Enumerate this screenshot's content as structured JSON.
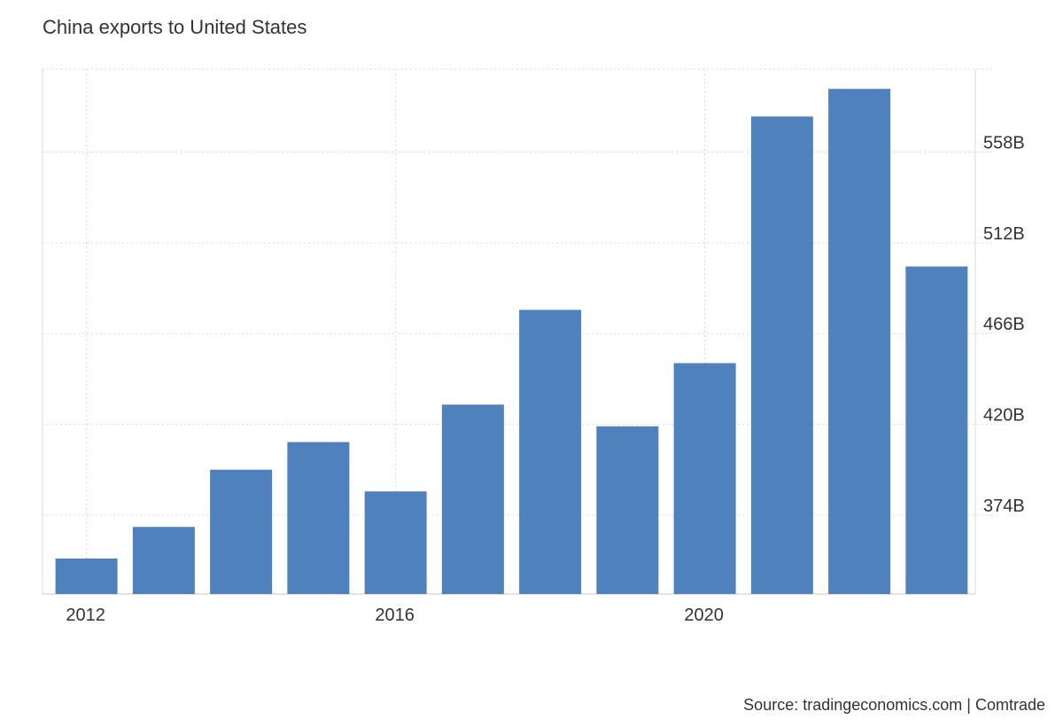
{
  "title": "China exports to United States",
  "source": "Source: tradingeconomics.com | Comtrade",
  "colors": {
    "bar": "#4f81bd",
    "grid": "#d9d9d9",
    "text": "#333333"
  },
  "chart_data": {
    "type": "bar",
    "title": "China exports to United States",
    "xlabel": "",
    "ylabel": "",
    "categories": [
      "2012",
      "2013",
      "2014",
      "2015",
      "2016",
      "2017",
      "2018",
      "2019",
      "2020",
      "2021",
      "2022",
      "2023"
    ],
    "x_tick_labels": [
      "2012",
      "2016",
      "2020"
    ],
    "series": [
      {
        "values": [
          352,
          368,
          397,
          411,
          386,
          430,
          478,
          419,
          451,
          576,
          590,
          500
        ]
      }
    ],
    "y_ticks": [
      374,
      420,
      466,
      512,
      558
    ],
    "y_tick_labels": [
      "374B",
      "420B",
      "466B",
      "512B",
      "558B"
    ],
    "ylim": [
      334,
      600
    ],
    "grid": true,
    "y_axis_position": "right"
  }
}
